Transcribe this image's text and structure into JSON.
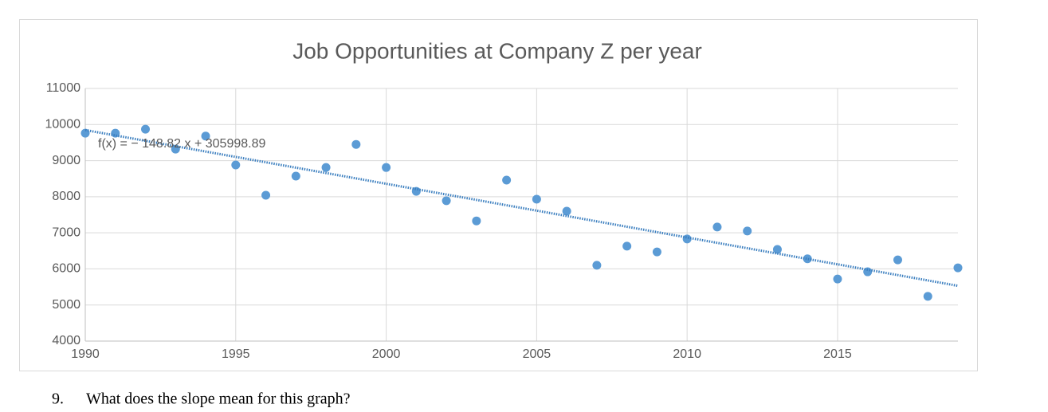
{
  "chart_data": {
    "type": "scatter",
    "title": "Job Opportunities at Company Z per year",
    "x": [
      1990,
      1991,
      1992,
      1993,
      1994,
      1995,
      1996,
      1997,
      1998,
      1999,
      2000,
      2001,
      2002,
      2003,
      2004,
      2005,
      2006,
      2007,
      2008,
      2009,
      2010,
      2011,
      2012,
      2013,
      2014,
      2015,
      2016,
      2017,
      2018,
      2019
    ],
    "values": [
      9760,
      9760,
      9870,
      9320,
      9680,
      8880,
      8040,
      8570,
      8810,
      9450,
      8810,
      8150,
      7890,
      7330,
      8460,
      7930,
      7600,
      6100,
      6630,
      6470,
      6830,
      7160,
      7050,
      6540,
      6280,
      5720,
      5920,
      6250,
      5240,
      6030
    ],
    "color": "#5b9bd5",
    "xlim": [
      1990,
      2019
    ],
    "xticks": [
      1990,
      1995,
      2000,
      2005,
      2010,
      2015
    ],
    "ylim": [
      4000,
      11000
    ],
    "yticks": [
      4000,
      5000,
      6000,
      7000,
      8000,
      9000,
      10000,
      11000
    ],
    "grid": true,
    "trendline": {
      "label": "f(x) = − 148.82 x + 305998.89",
      "slope": -148.82,
      "intercept": 305998.89,
      "color": "#3a7ebf"
    }
  },
  "question": {
    "number": "9.",
    "text": "What does the slope mean for this graph?"
  }
}
